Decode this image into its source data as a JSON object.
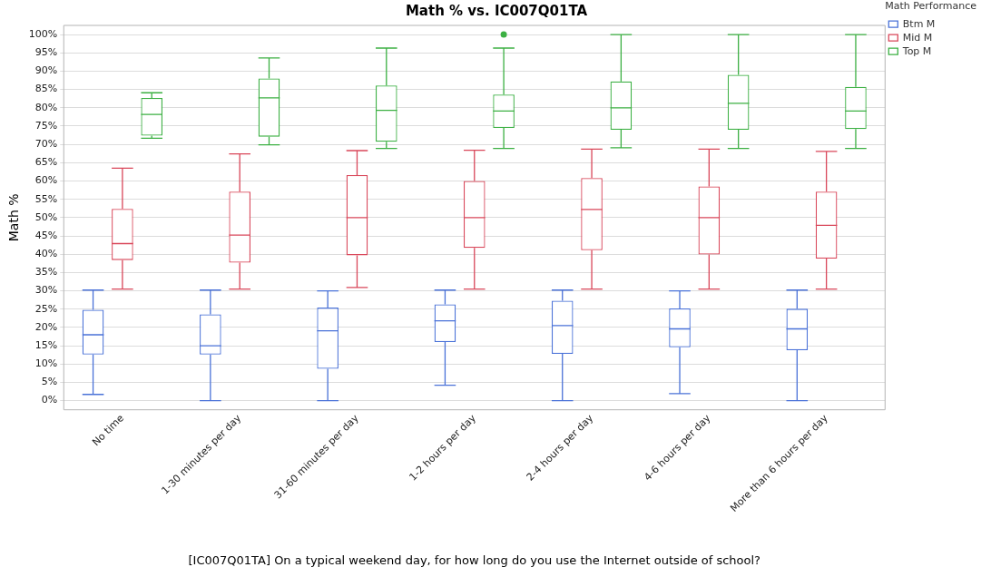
{
  "chart_data": {
    "type": "box",
    "title": "Math % vs. IC007Q01TA",
    "xlabel": "[IC007Q01TA] On a typical weekend day, for how long do you use the Internet outside of school?",
    "ylabel": "Math %",
    "legend_title": "Math Performance",
    "legend": "top right",
    "grid": "y",
    "categories": [
      "No time",
      "1-30 minutes per day",
      "31-60 minutes per day",
      "1-2 hours per day",
      "2-4 hours per day",
      "4-6 hours per day",
      "More than 6 hours per day"
    ],
    "ylim": [
      -2.5,
      102.5
    ],
    "yticks": [
      {
        "value": 0,
        "label": "0%"
      },
      {
        "value": 5,
        "label": "5%"
      },
      {
        "value": 10,
        "label": "10%"
      },
      {
        "value": 15,
        "label": "15%"
      },
      {
        "value": 20,
        "label": "20%"
      },
      {
        "value": 25,
        "label": "25%"
      },
      {
        "value": 30,
        "label": "30%"
      },
      {
        "value": 35,
        "label": "35%"
      },
      {
        "value": 40,
        "label": "40%"
      },
      {
        "value": 45,
        "label": "45%"
      },
      {
        "value": 50,
        "label": "50%"
      },
      {
        "value": 55,
        "label": "55%"
      },
      {
        "value": 60,
        "label": "60%"
      },
      {
        "value": 65,
        "label": "65%"
      },
      {
        "value": 70,
        "label": "70%"
      },
      {
        "value": 75,
        "label": "75%"
      },
      {
        "value": 80,
        "label": "80%"
      },
      {
        "value": 85,
        "label": "85%"
      },
      {
        "value": 90,
        "label": "90%"
      },
      {
        "value": 95,
        "label": "95%"
      },
      {
        "value": 100,
        "label": "100%"
      }
    ],
    "series": [
      {
        "name": "Btm M",
        "color": "#4a72d8",
        "boxes": [
          {
            "low": 1.7,
            "q1": 12.6,
            "median": 18.0,
            "q3": 24.8,
            "high": 30.2
          },
          {
            "low": 0,
            "q1": 12.6,
            "median": 15.0,
            "q3": 23.6,
            "high": 30.2
          },
          {
            "low": 0,
            "q1": 8.7,
            "median": 19.1,
            "q3": 25.4,
            "high": 30.0
          },
          {
            "low": 4.2,
            "q1": 16.0,
            "median": 21.8,
            "q3": 26.3,
            "high": 30.2
          },
          {
            "low": 0,
            "q1": 12.8,
            "median": 20.5,
            "q3": 27.3,
            "high": 30.2
          },
          {
            "low": 1.9,
            "q1": 14.6,
            "median": 19.6,
            "q3": 25.2,
            "high": 30.0
          },
          {
            "low": 0,
            "q1": 13.8,
            "median": 19.6,
            "q3": 25.1,
            "high": 30.2
          }
        ]
      },
      {
        "name": "Mid M",
        "color": "#d9475a",
        "boxes": [
          {
            "low": 30.5,
            "q1": 38.4,
            "median": 42.9,
            "q3": 52.4,
            "high": 63.5
          },
          {
            "low": 30.5,
            "q1": 37.7,
            "median": 45.2,
            "q3": 57.1,
            "high": 67.4
          },
          {
            "low": 30.9,
            "q1": 39.7,
            "median": 50.0,
            "q3": 61.6,
            "high": 68.3
          },
          {
            "low": 30.5,
            "q1": 41.7,
            "median": 50.0,
            "q3": 60.0,
            "high": 68.4
          },
          {
            "low": 30.5,
            "q1": 41.1,
            "median": 52.2,
            "q3": 60.8,
            "high": 68.7
          },
          {
            "low": 30.5,
            "q1": 39.9,
            "median": 50.0,
            "q3": 58.5,
            "high": 68.7
          },
          {
            "low": 30.5,
            "q1": 38.8,
            "median": 47.9,
            "q3": 57.1,
            "high": 68.1
          }
        ]
      },
      {
        "name": "Top M",
        "color": "#3cb043",
        "boxes": [
          {
            "low": 71.7,
            "q1": 72.4,
            "median": 78.2,
            "q3": 82.7,
            "high": 84.1
          },
          {
            "low": 69.9,
            "q1": 72.1,
            "median": 82.7,
            "q3": 88.0,
            "high": 93.6
          },
          {
            "low": 68.9,
            "q1": 70.7,
            "median": 79.3,
            "q3": 86.1,
            "high": 96.3
          },
          {
            "low": 68.9,
            "q1": 74.5,
            "median": 79.1,
            "q3": 83.6,
            "high": 96.3,
            "outliers": [
              100
            ]
          },
          {
            "low": 69.1,
            "q1": 74.0,
            "median": 80.0,
            "q3": 87.2,
            "high": 100
          },
          {
            "low": 68.9,
            "q1": 74.0,
            "median": 81.2,
            "q3": 89.0,
            "high": 100
          },
          {
            "low": 68.9,
            "q1": 74.2,
            "median": 79.1,
            "q3": 85.7,
            "high": 100
          }
        ]
      }
    ]
  }
}
